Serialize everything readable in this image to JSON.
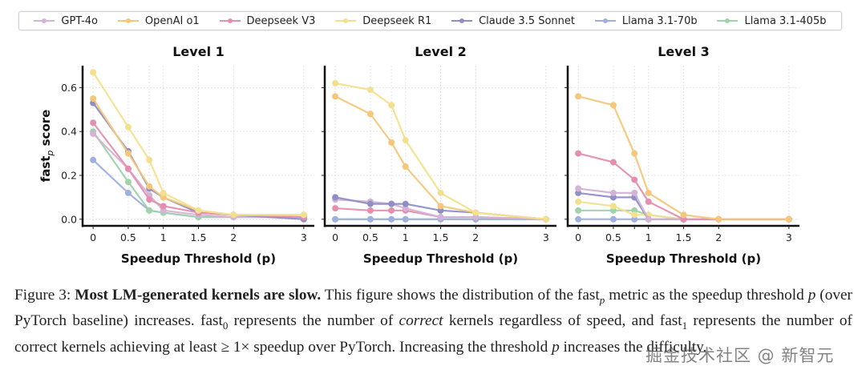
{
  "figure": {
    "caption_label": "Figure 3:",
    "caption_bold": "Most LM-generated kernels are slow.",
    "caption_parts": {
      "p1": " This figure shows the distribution of the fast",
      "p1_sub": "p",
      "p2": " metric as the speedup threshold ",
      "p2_var": "p",
      "p3": " (over PyTorch baseline) increases. fast",
      "p3_sub": "0",
      "p4": " represents the number of ",
      "p4_em": "correct",
      "p5": " kernels regardless of speed, and fast",
      "p5_sub": "1",
      "p6": " represents the number of correct kernels achieving at least ≥ 1× speedup over PyTorch. Increasing the threshold ",
      "p6_var": "p",
      "p7": " increases the difficulty."
    },
    "watermark": "掘金技术社区 @ 新智元"
  },
  "legend": [
    {
      "name": "GPT-4o",
      "color": "#d4b3d6"
    },
    {
      "name": "OpenAI o1",
      "color": "#f4c77a"
    },
    {
      "name": "Deepseek V3",
      "color": "#e58fb0"
    },
    {
      "name": "Deepseek R1",
      "color": "#f3e08f"
    },
    {
      "name": "Claude 3.5 Sonnet",
      "color": "#8f8fc8"
    },
    {
      "name": "Llama 3.1-70b",
      "color": "#9fb0e0"
    },
    {
      "name": "Llama 3.1-405b",
      "color": "#9fd3aa"
    }
  ],
  "chart_data": [
    {
      "type": "line",
      "title": "Level 1",
      "xlabel": "Speedup Threshold (p)",
      "ylabel": "fast_p score",
      "x": [
        0,
        0.5,
        0.8,
        1,
        1.5,
        2,
        3
      ],
      "xticks": [
        "0",
        "0.5",
        "1",
        "1.5",
        "2",
        "3"
      ],
      "xtick_values": [
        0,
        0.5,
        1,
        1.5,
        2,
        3
      ],
      "yticks": [
        "0.0",
        "0.2",
        "0.4",
        "0.6"
      ],
      "ytick_values": [
        0,
        0.2,
        0.4,
        0.6
      ],
      "ylim": [
        -0.03,
        0.7
      ],
      "xlim": [
        -0.15,
        3.15
      ],
      "grid": true,
      "legend_position": "top",
      "series": [
        {
          "name": "Llama 3.1-70b",
          "values": [
            0.27,
            0.12,
            0.04,
            0.03,
            0.01,
            0.01,
            0.01
          ]
        },
        {
          "name": "Llama 3.1-405b",
          "values": [
            0.4,
            0.17,
            0.04,
            0.03,
            0.01,
            0.01,
            0.01
          ]
        },
        {
          "name": "GPT-4o",
          "values": [
            0.39,
            0.23,
            0.11,
            0.04,
            0.02,
            0.01,
            0.01
          ]
        },
        {
          "name": "Claude 3.5 Sonnet",
          "values": [
            0.53,
            0.31,
            0.14,
            0.1,
            0.03,
            0.02,
            0.0
          ]
        },
        {
          "name": "Deepseek V3",
          "values": [
            0.44,
            0.23,
            0.09,
            0.06,
            0.03,
            0.02,
            0.01
          ]
        },
        {
          "name": "OpenAI o1",
          "values": [
            0.55,
            0.3,
            0.15,
            0.1,
            0.04,
            0.02,
            0.02
          ]
        },
        {
          "name": "Deepseek R1",
          "values": [
            0.67,
            0.42,
            0.27,
            0.12,
            0.04,
            0.02,
            0.02
          ]
        }
      ]
    },
    {
      "type": "line",
      "title": "Level 2",
      "xlabel": "Speedup Threshold (p)",
      "ylabel": "",
      "x": [
        0,
        0.5,
        0.8,
        1,
        1.5,
        2,
        3
      ],
      "xticks": [
        "0",
        "0.5",
        "1",
        "1.5",
        "2",
        "3"
      ],
      "xtick_values": [
        0,
        0.5,
        1,
        1.5,
        2,
        3
      ],
      "yticks": [],
      "ytick_values": [
        0,
        0.2,
        0.4,
        0.6
      ],
      "ylim": [
        -0.03,
        0.7
      ],
      "xlim": [
        -0.15,
        3.15
      ],
      "grid": true,
      "series": [
        {
          "name": "Llama 3.1-405b",
          "values": [
            0.0,
            0.0,
            0.0,
            0.0,
            0.0,
            0.0,
            0.0
          ]
        },
        {
          "name": "Llama 3.1-70b",
          "values": [
            0.0,
            0.0,
            0.0,
            0.0,
            0.0,
            0.0,
            0.0
          ]
        },
        {
          "name": "Deepseek V3",
          "values": [
            0.05,
            0.04,
            0.04,
            0.04,
            0.01,
            0.01,
            0.0
          ]
        },
        {
          "name": "GPT-4o",
          "values": [
            0.09,
            0.08,
            0.07,
            0.05,
            0.01,
            0.01,
            0.0
          ]
        },
        {
          "name": "Claude 3.5 Sonnet",
          "values": [
            0.1,
            0.07,
            0.07,
            0.07,
            0.04,
            0.03,
            0.0
          ]
        },
        {
          "name": "OpenAI o1",
          "values": [
            0.56,
            0.48,
            0.35,
            0.24,
            0.06,
            0.03,
            0.0
          ]
        },
        {
          "name": "Deepseek R1",
          "values": [
            0.62,
            0.59,
            0.52,
            0.36,
            0.12,
            0.03,
            0.0
          ]
        }
      ]
    },
    {
      "type": "line",
      "title": "Level 3",
      "xlabel": "Speedup Threshold (p)",
      "ylabel": "",
      "x": [
        0,
        0.5,
        0.8,
        1,
        1.5,
        2,
        3
      ],
      "xticks": [
        "0",
        "0.5",
        "1",
        "1.5",
        "2",
        "3"
      ],
      "xtick_values": [
        0,
        0.5,
        1,
        1.5,
        2,
        3
      ],
      "yticks": [],
      "ytick_values": [
        0,
        0.2,
        0.4,
        0.6
      ],
      "ylim": [
        -0.03,
        0.7
      ],
      "xlim": [
        -0.15,
        3.15
      ],
      "grid": true,
      "series": [
        {
          "name": "Llama 3.1-70b",
          "values": [
            0.0,
            0.0,
            0.0,
            0.0,
            0.0,
            0.0,
            0.0
          ]
        },
        {
          "name": "Llama 3.1-405b",
          "values": [
            0.04,
            0.04,
            0.04,
            0.02,
            0.0,
            0.0,
            0.0
          ]
        },
        {
          "name": "Deepseek R1",
          "values": [
            0.08,
            0.06,
            0.02,
            0.02,
            0.0,
            0.0,
            0.0
          ]
        },
        {
          "name": "Claude 3.5 Sonnet",
          "values": [
            0.12,
            0.1,
            0.1,
            0.0,
            0.0,
            0.0,
            0.0
          ]
        },
        {
          "name": "GPT-4o",
          "values": [
            0.14,
            0.12,
            0.12,
            0.0,
            0.0,
            0.0,
            0.0
          ]
        },
        {
          "name": "Deepseek V3",
          "values": [
            0.3,
            0.26,
            0.18,
            0.08,
            0.0,
            0.0,
            0.0
          ]
        },
        {
          "name": "OpenAI o1",
          "values": [
            0.56,
            0.52,
            0.3,
            0.12,
            0.02,
            0.0,
            0.0
          ]
        }
      ]
    }
  ]
}
